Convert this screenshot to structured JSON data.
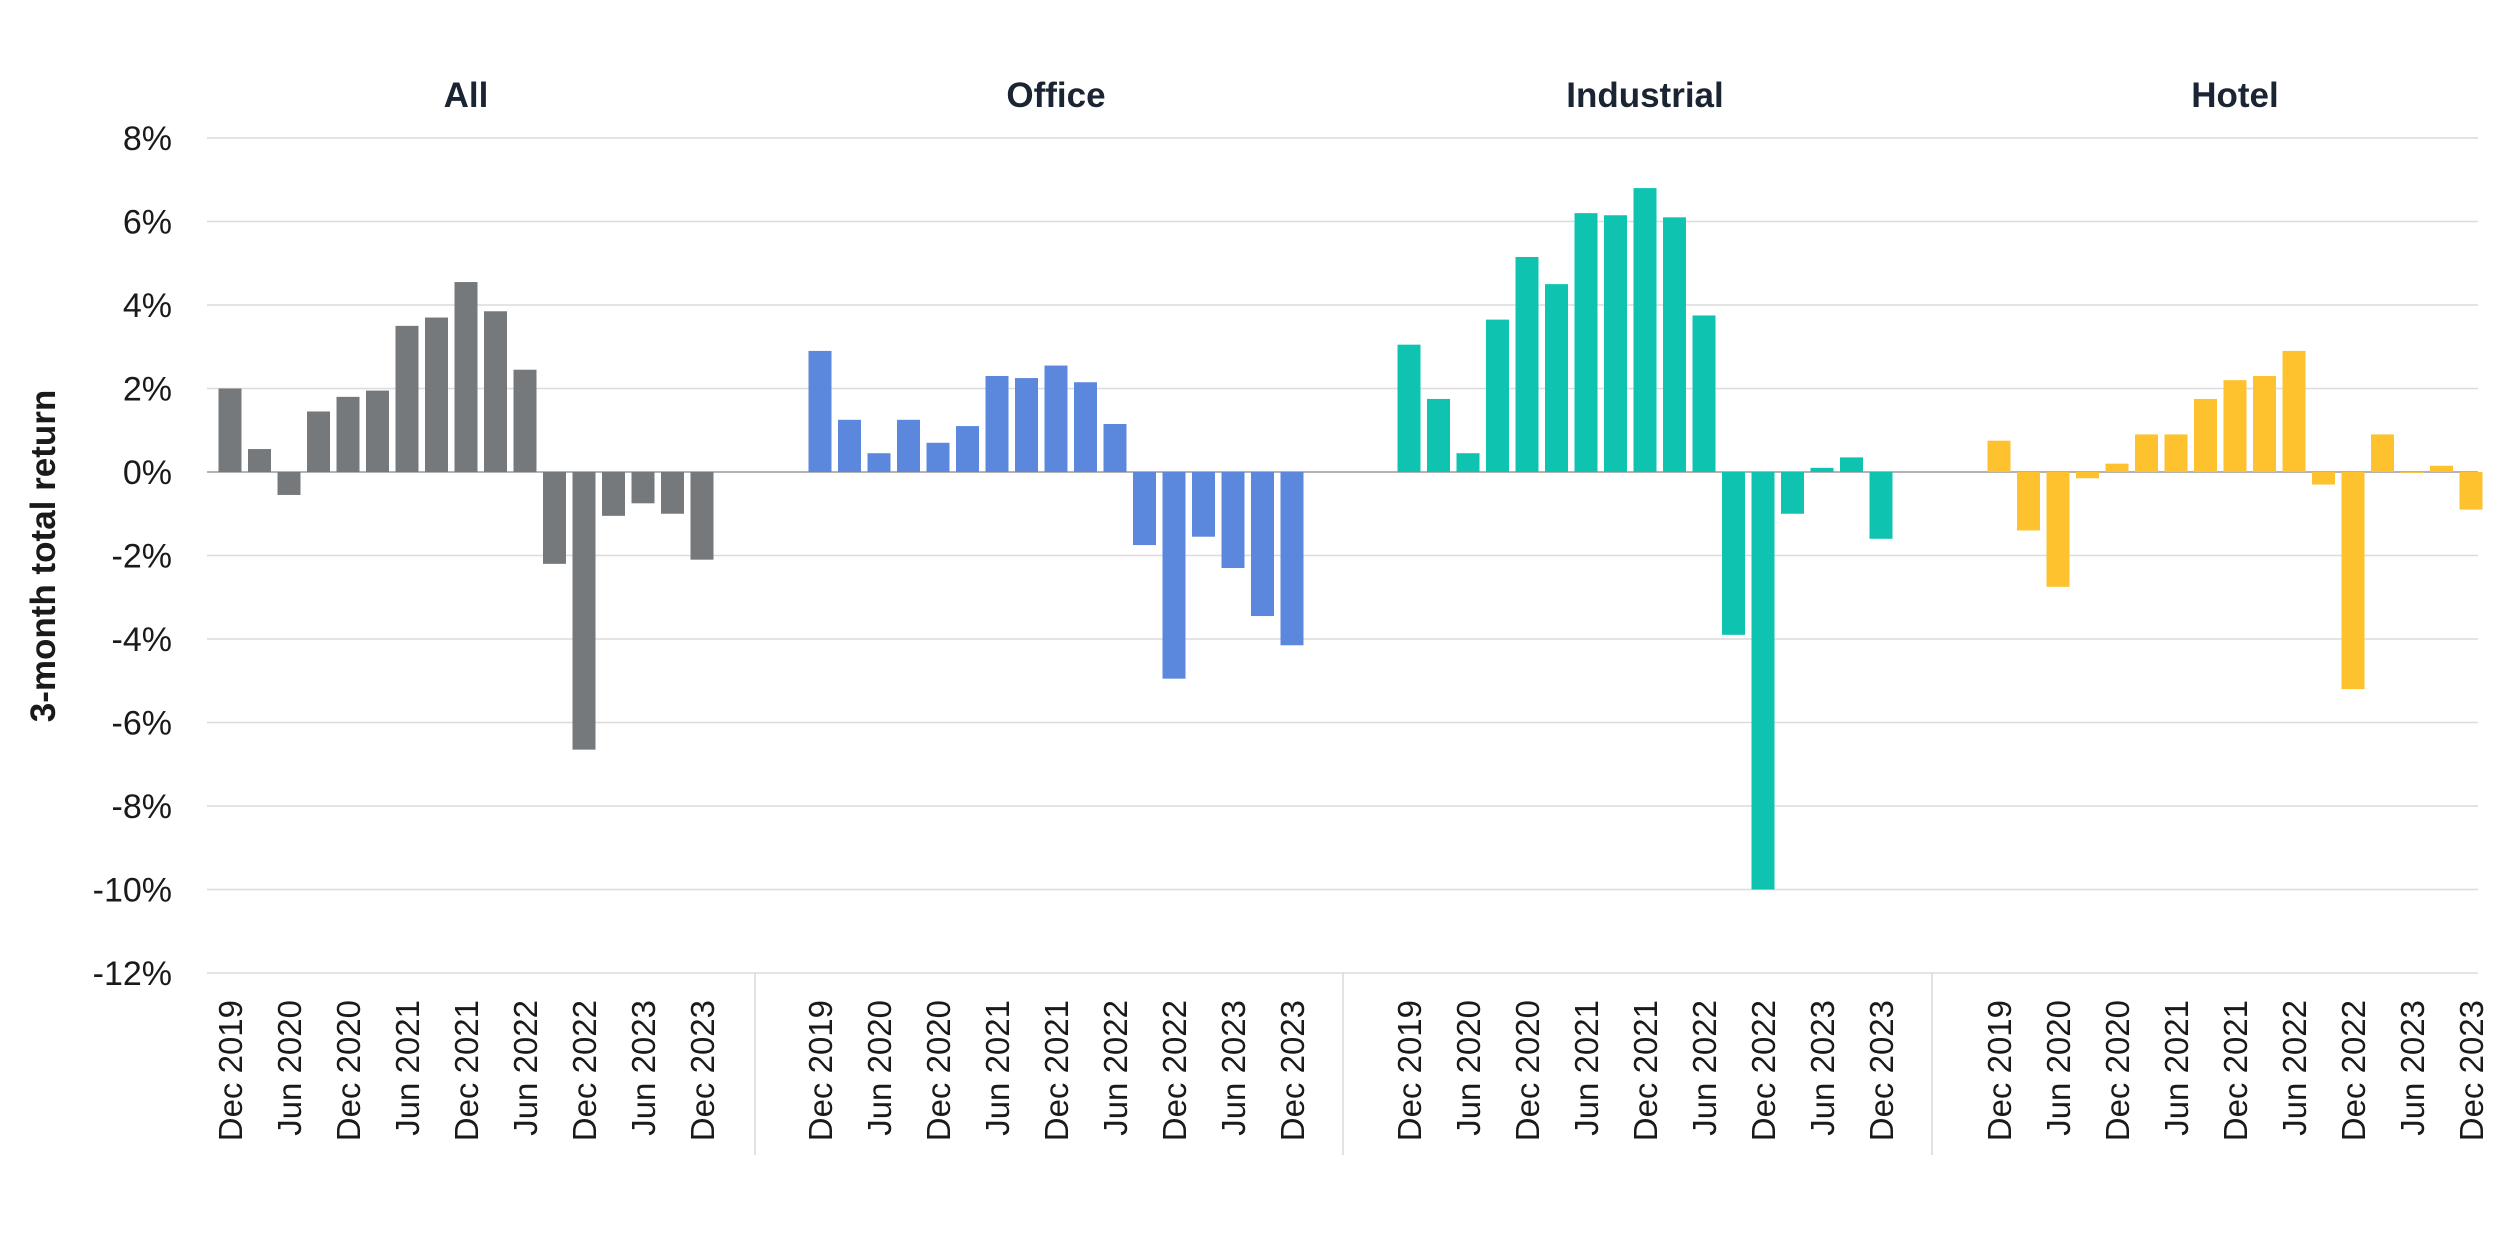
{
  "chart_data": {
    "type": "bar",
    "ylabel": "3-month total return",
    "ylim": [
      -12,
      8
    ],
    "yticks": [
      8,
      6,
      4,
      2,
      0,
      -2,
      -4,
      -6,
      -8,
      -10,
      -12
    ],
    "ytick_labels": [
      "8%",
      "6%",
      "4%",
      "2%",
      "0%",
      "-2%",
      "-4%",
      "-6%",
      "-8%",
      "-10%",
      "-12%"
    ],
    "grid": true,
    "categories": [
      "Dec 2019",
      "Mar 2020",
      "Jun 2020",
      "Sep 2020",
      "Dec 2020",
      "Mar 2021",
      "Jun 2021",
      "Sep 2021",
      "Dec 2021",
      "Mar 2022",
      "Jun 2022",
      "Sep 2022",
      "Dec 2022",
      "Mar 2023",
      "Jun 2023",
      "Sep 2023",
      "Dec 2023"
    ],
    "xtick_labels": [
      "Dec 2019",
      "Jun 2020",
      "Dec 2020",
      "Jun 2021",
      "Dec 2021",
      "Jun 2022",
      "Dec 2022",
      "Jun 2023",
      "Dec 2023"
    ],
    "panels": [
      {
        "title": "All",
        "color": "#76797c",
        "values": [
          2.0,
          0.55,
          -0.55,
          1.45,
          1.8,
          1.95,
          3.5,
          3.7,
          4.55,
          3.85,
          2.45,
          -2.2,
          -6.65,
          -1.05,
          -0.75,
          -1.0,
          -2.1
        ]
      },
      {
        "title": "Office",
        "color": "#5b88dd",
        "values": [
          2.9,
          1.25,
          0.45,
          1.25,
          0.7,
          1.1,
          2.3,
          2.25,
          2.55,
          2.15,
          1.15,
          -1.75,
          -4.95,
          -1.55,
          -2.3,
          -3.45,
          -4.15
        ]
      },
      {
        "title": "Industrial",
        "color": "#0ec4b0",
        "values": [
          3.05,
          1.75,
          0.45,
          3.65,
          5.15,
          4.5,
          6.2,
          6.15,
          6.8,
          6.1,
          3.75,
          -3.9,
          -10.0,
          -1.0,
          0.1,
          0.35,
          -1.6
        ]
      },
      {
        "title": "Hotel",
        "color": "#fdc22e",
        "values": [
          0.75,
          -1.4,
          -2.75,
          -0.15,
          0.2,
          0.9,
          0.9,
          1.75,
          2.2,
          2.3,
          2.9,
          -0.3,
          -5.2,
          0.9,
          0.0,
          0.15,
          -0.9
        ]
      }
    ]
  }
}
